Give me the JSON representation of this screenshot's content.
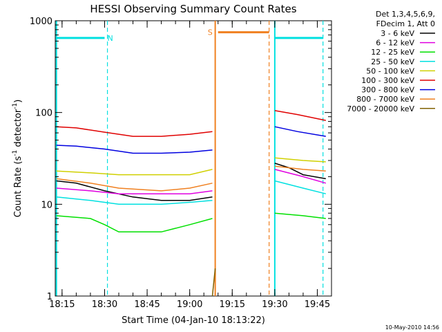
{
  "chart_data": {
    "type": "line",
    "title": "HESSI Observing Summary Count Rates",
    "xlabel": "Start Time (04-Jan-10 18:13:22)",
    "ylabel_main": "Count Rate (s",
    "ylabel_sup1": "-1",
    "ylabel_mid": " detector",
    "ylabel_sup2": "-1",
    "ylabel_end": ")",
    "yscale": "log",
    "ylim": [
      1,
      1000
    ],
    "xlim": [
      "18:13",
      "19:50"
    ],
    "x_ticks": [
      "18:15",
      "18:30",
      "18:45",
      "19:00",
      "19:15",
      "19:30",
      "19:45"
    ],
    "y_ticks": [
      "1",
      "10",
      "100",
      "1000"
    ],
    "legend_header": [
      "Det 1,3,4,5,6,9,",
      "FDecim 1, Att 0"
    ],
    "legend_placement": "right",
    "date_stamp": "10-May-2010 14:56",
    "flags": [
      {
        "label": "N",
        "color": "#00e0e0",
        "x_start": "18:13",
        "x_end": "18:30",
        "level": 650
      },
      {
        "label": "S",
        "color": "#f08020",
        "x_start": "19:10",
        "x_end": "19:28",
        "level": 750
      },
      {
        "label": "",
        "color": "#00e0e0",
        "x_start": "19:30",
        "x_end": "19:47",
        "level": 650
      }
    ],
    "series": [
      {
        "name": "3 - 6 keV",
        "color": "#000000",
        "segments": [
          [
            [
              "18:13",
              18
            ],
            [
              "18:20",
              17
            ],
            [
              "18:30",
              14
            ],
            [
              "18:40",
              12
            ],
            [
              "18:50",
              11
            ],
            [
              "19:00",
              11
            ],
            [
              "19:08",
              12
            ]
          ],
          [
            [
              "19:30",
              28
            ],
            [
              "19:35",
              25
            ],
            [
              "19:40",
              21
            ],
            [
              "19:48",
              19
            ]
          ]
        ]
      },
      {
        "name": "6 - 12 keV",
        "color": "#e000e0",
        "segments": [
          [
            [
              "18:13",
              15
            ],
            [
              "18:25",
              14
            ],
            [
              "18:35",
              13
            ],
            [
              "18:50",
              13
            ],
            [
              "19:00",
              13
            ],
            [
              "19:08",
              14
            ]
          ],
          [
            [
              "19:30",
              24
            ],
            [
              "19:40",
              20
            ],
            [
              "19:48",
              17
            ]
          ]
        ]
      },
      {
        "name": "12 - 25 keV",
        "color": "#00e000",
        "segments": [
          [
            [
              "18:13",
              7.5
            ],
            [
              "18:25",
              7
            ],
            [
              "18:30",
              6
            ],
            [
              "18:35",
              5
            ],
            [
              "18:50",
              5
            ],
            [
              "19:00",
              6
            ],
            [
              "19:08",
              7
            ]
          ],
          [
            [
              "19:30",
              8
            ],
            [
              "19:40",
              7.5
            ],
            [
              "19:48",
              7
            ]
          ]
        ]
      },
      {
        "name": "25 - 50 keV",
        "color": "#00e0e0",
        "segments": [
          [
            [
              "18:13",
              12
            ],
            [
              "18:25",
              11
            ],
            [
              "18:35",
              10
            ],
            [
              "18:50",
              10
            ],
            [
              "19:00",
              10.5
            ],
            [
              "19:08",
              11
            ]
          ],
          [
            [
              "19:30",
              18
            ],
            [
              "19:40",
              15
            ],
            [
              "19:48",
              13
            ]
          ]
        ]
      },
      {
        "name": "50 - 100 keV",
        "color": "#d0d000",
        "segments": [
          [
            [
              "18:13",
              23
            ],
            [
              "18:25",
              22
            ],
            [
              "18:35",
              21
            ],
            [
              "18:50",
              21
            ],
            [
              "19:00",
              21
            ],
            [
              "19:08",
              24
            ]
          ],
          [
            [
              "19:30",
              32
            ],
            [
              "19:40",
              30
            ],
            [
              "19:48",
              29
            ]
          ]
        ]
      },
      {
        "name": "100 - 300 keV",
        "color": "#e00000",
        "segments": [
          [
            [
              "18:13",
              70
            ],
            [
              "18:20",
              68
            ],
            [
              "18:30",
              61
            ],
            [
              "18:40",
              55
            ],
            [
              "18:50",
              55
            ],
            [
              "19:00",
              58
            ],
            [
              "19:08",
              62
            ]
          ],
          [
            [
              "19:30",
              105
            ],
            [
              "19:38",
              95
            ],
            [
              "19:48",
              82
            ]
          ]
        ]
      },
      {
        "name": "300 - 800 keV",
        "color": "#0000e0",
        "segments": [
          [
            [
              "18:13",
              44
            ],
            [
              "18:20",
              43
            ],
            [
              "18:30",
              40
            ],
            [
              "18:40",
              36
            ],
            [
              "18:50",
              36
            ],
            [
              "19:00",
              37
            ],
            [
              "19:08",
              39
            ]
          ],
          [
            [
              "19:30",
              70
            ],
            [
              "19:38",
              62
            ],
            [
              "19:48",
              55
            ]
          ]
        ]
      },
      {
        "name": "800 - 7000 keV",
        "color": "#f08020",
        "segments": [
          [
            [
              "18:13",
              19
            ],
            [
              "18:25",
              17
            ],
            [
              "18:35",
              15
            ],
            [
              "18:50",
              14
            ],
            [
              "19:00",
              15
            ],
            [
              "19:08",
              17
            ]
          ],
          [
            [
              "19:30",
              26
            ],
            [
              "19:40",
              24
            ],
            [
              "19:48",
              23
            ]
          ]
        ]
      },
      {
        "name": "7000 - 20000 keV",
        "color": "#806000",
        "segments": [
          [
            [
              "19:08",
              1
            ],
            [
              "19:09",
              2
            ]
          ]
        ]
      }
    ],
    "vlines": [
      {
        "x": "18:13",
        "color": "#00e0e0",
        "style": "solid"
      },
      {
        "x": "18:31",
        "color": "#00e0e0",
        "style": "dashed"
      },
      {
        "x": "19:09",
        "color": "#f08020",
        "style": "solid"
      },
      {
        "x": "19:28",
        "color": "#f08020",
        "style": "dashed"
      },
      {
        "x": "19:30",
        "color": "#00e0e0",
        "style": "solid"
      },
      {
        "x": "19:47",
        "color": "#00e0e0",
        "style": "dashed"
      }
    ]
  }
}
